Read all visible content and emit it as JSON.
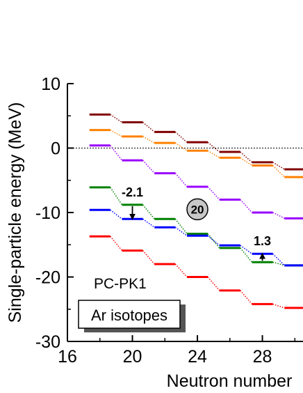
{
  "chart_data": {
    "type": "line",
    "xlabel": "Neutron number",
    "ylabel": "Single-particle energy (MeV)",
    "xlim": [
      16,
      30.5
    ],
    "ylim": [
      -30,
      10
    ],
    "xticks": [
      16,
      20,
      24,
      28
    ],
    "yticks": [
      10,
      0,
      -10,
      -20,
      -30
    ],
    "x": [
      18,
      20,
      22,
      24,
      26,
      28,
      30
    ],
    "series": [
      {
        "color": "#800000",
        "values": [
          5.2,
          4.0,
          2.5,
          0.9,
          -0.6,
          -2.2,
          -3.3
        ]
      },
      {
        "color": "#ff8000",
        "values": [
          2.8,
          1.8,
          0.8,
          -0.4,
          -1.5,
          -2.7,
          -4.5
        ]
      },
      {
        "color": "#9900ff",
        "values": [
          0.4,
          -1.9,
          -3.9,
          -6.0,
          -8.0,
          -10.0,
          -10.9
        ]
      },
      {
        "color": "#008000",
        "values": [
          -6.1,
          -8.8,
          -11.0,
          -13.3,
          -15.5,
          -17.7,
          -18.2
        ]
      },
      {
        "color": "#0000ff",
        "values": [
          -9.6,
          -11.0,
          -12.3,
          -13.6,
          -15.1,
          -16.4,
          -18.2
        ]
      },
      {
        "color": "#ff0000",
        "values": [
          -13.7,
          -15.9,
          -18.0,
          -20.0,
          -22.1,
          -24.2,
          -24.8
        ]
      }
    ],
    "reference_line": {
      "y": 0,
      "style": "dotted"
    },
    "annotations": [
      {
        "text": "-2.1",
        "x": 20,
        "y_from": -8.8,
        "y_to": -11.0,
        "arrow": "down"
      },
      {
        "text": "1.3",
        "x": 28,
        "y_from": -17.7,
        "y_to": -16.4,
        "arrow": "up"
      },
      {
        "text": "20",
        "x": 24,
        "y": -9.5,
        "shape": "circle"
      }
    ],
    "labels": {
      "model": "PC-PK1",
      "isotopes": "Ar isotopes"
    }
  }
}
